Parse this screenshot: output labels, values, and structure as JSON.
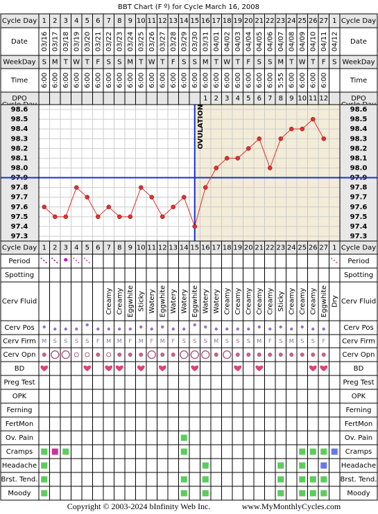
{
  "title": "BBT Chart (F º) for Cycle March 16, 2008",
  "footer": {
    "copyright": "Copyright © 2003-2024 bInfinity Web Inc.",
    "site": "www.MyMonthlyCycles.com"
  },
  "labels": {
    "cycle_day": "Cycle Day",
    "date": "Date",
    "weekday": "WeekDay",
    "time": "Time",
    "dpo": "DPO",
    "period": "Period",
    "spotting": "Spotting",
    "cerv_fluid": "Cerv Fluid",
    "cerv_pos": "Cerv Pos",
    "cerv_firm": "Cerv Firm",
    "cerv_opn": "Cerv Opn",
    "bd": "BD"
  },
  "cycle_days": [
    1,
    2,
    3,
    4,
    5,
    6,
    7,
    8,
    9,
    10,
    11,
    12,
    13,
    14,
    15,
    16,
    17,
    18,
    19,
    20,
    21,
    22,
    23,
    24,
    25,
    26,
    27,
    1
  ],
  "dates": [
    "03/16",
    "03/17",
    "03/18",
    "03/19",
    "03/20",
    "03/21",
    "03/22",
    "03/23",
    "03/24",
    "03/25",
    "03/26",
    "03/27",
    "03/28",
    "03/29",
    "03/30",
    "03/31",
    "04/01",
    "04/02",
    "04/03",
    "04/04",
    "04/05",
    "04/06",
    "04/07",
    "04/08",
    "04/09",
    "04/10",
    "04/11",
    "04/12"
  ],
  "weekdays": [
    "S",
    "M",
    "T",
    "W",
    "T",
    "F",
    "S",
    "S",
    "M",
    "T",
    "W",
    "T",
    "F",
    "S",
    "S",
    "M",
    "T",
    "W",
    "T",
    "F",
    "S",
    "S",
    "M",
    "T",
    "W",
    "T",
    "F",
    "S"
  ],
  "times": [
    "6:00",
    "6:00",
    "6:00",
    "6:00",
    "6:00",
    "6:00",
    "6:00",
    "6:00",
    "6:00",
    "6:00",
    "6:00",
    "6:00",
    "6:00",
    "6:00",
    "6:00",
    "6:00",
    "6:00",
    "6:00",
    "6:00",
    "6:00",
    "6:00",
    "6:00",
    "5:55",
    "6:00",
    "6:00",
    "6:00",
    "6:00",
    null
  ],
  "dpo": [
    null,
    null,
    null,
    null,
    null,
    null,
    null,
    null,
    null,
    null,
    null,
    null,
    null,
    null,
    null,
    1,
    2,
    3,
    4,
    5,
    6,
    7,
    8,
    9,
    10,
    11,
    12,
    null
  ],
  "chart_data": {
    "type": "line",
    "color": "#e03030",
    "values": [
      97.6,
      97.5,
      97.5,
      97.8,
      97.7,
      97.5,
      97.6,
      97.5,
      97.5,
      97.8,
      97.7,
      97.5,
      97.6,
      97.7,
      97.4,
      97.8,
      98.0,
      98.1,
      98.1,
      98.2,
      98.3,
      98.0,
      98.3,
      98.4,
      98.4,
      98.5,
      98.3,
      null
    ],
    "ylim": [
      97.25,
      98.65
    ],
    "yticks": [
      {
        "value": 98.6,
        "label": "98.6"
      },
      {
        "value": 98.5,
        "label": "98.5"
      },
      {
        "value": 98.4,
        "label": "98.4"
      },
      {
        "value": 98.3,
        "label": "98.3"
      },
      {
        "value": 98.2,
        "label": "98.2"
      },
      {
        "value": 98.1,
        "label": "98.1"
      },
      {
        "value": 98,
        "label": "98.0"
      },
      {
        "value": 97.9,
        "label": "97.9"
      },
      {
        "value": 97.8,
        "label": "97.8"
      },
      {
        "value": 97.7,
        "label": "97.7"
      },
      {
        "value": 97.6,
        "label": "97.6"
      },
      {
        "value": 97.5,
        "label": "97.5"
      },
      {
        "value": 97.4,
        "label": "97.4"
      },
      {
        "value": 97.3,
        "label": "97.3"
      }
    ],
    "coverline": 97.9,
    "ovulation_day": 15,
    "annotation": "OVULATION",
    "grid": true
  },
  "period": [
    2,
    2,
    3,
    1,
    1,
    0,
    0,
    0,
    0,
    0,
    0,
    0,
    0,
    0,
    0,
    0,
    0,
    0,
    0,
    0,
    0,
    0,
    0,
    0,
    0,
    0,
    0,
    1
  ],
  "cerv_fluid": [
    null,
    null,
    null,
    null,
    null,
    null,
    "Creamy",
    "Creamy",
    "Eggwhite",
    "Sticky",
    "Watery",
    "Eggwhite",
    "Watery",
    "Watery",
    "Eggwhite",
    "Watery",
    "Watery",
    "Creamy",
    "Creamy",
    "Creamy",
    "Creamy",
    "Creamy",
    "Sticky",
    "Creamy",
    "Creamy",
    "Creamy",
    "Eggwhite",
    "Dry"
  ],
  "cerv_pos": [
    2,
    1,
    1,
    1,
    3,
    1,
    1,
    1,
    1,
    2,
    1,
    2,
    1,
    1,
    3,
    2,
    1,
    1,
    1,
    1,
    2,
    1,
    2,
    1,
    2,
    1,
    1,
    0
  ],
  "cerv_firm": [
    "M",
    "S",
    "S",
    "S",
    "S",
    "F",
    "M",
    "M",
    "F",
    "M",
    "F",
    "M",
    "F",
    "S",
    "S",
    "S",
    "M",
    "S",
    "S",
    "S",
    "M",
    "F",
    "S",
    "M",
    "S",
    "S",
    "F",
    null
  ],
  "cerv_opn": [
    1,
    3,
    3,
    2,
    2,
    1,
    2,
    1,
    1,
    1,
    3,
    1,
    1,
    3,
    3,
    3,
    1,
    3,
    1,
    1,
    1,
    1,
    1,
    1,
    1,
    1,
    1,
    0
  ],
  "bd": [
    1,
    0,
    0,
    0,
    1,
    0,
    1,
    1,
    0,
    1,
    0,
    1,
    0,
    0,
    1,
    0,
    0,
    0,
    1,
    0,
    1,
    0,
    0,
    0,
    0,
    1,
    1,
    0
  ],
  "symptom_colors": {
    "1": "#5ccc5c",
    "2": "#cc3399",
    "3": "#6677ee"
  },
  "symptom_rows": [
    {
      "label": "Preg Test"
    },
    {
      "label": "OPK"
    },
    {
      "label": "Ferning"
    },
    {
      "label": "FertMon"
    },
    {
      "label": "Ov. Pain",
      "values": [
        0,
        0,
        0,
        0,
        0,
        0,
        0,
        0,
        0,
        0,
        0,
        0,
        0,
        1,
        0,
        0,
        0,
        0,
        0,
        0,
        0,
        0,
        0,
        0,
        0,
        0,
        0,
        0
      ]
    },
    {
      "label": "Cramps",
      "values": [
        1,
        2,
        1,
        0,
        0,
        0,
        0,
        0,
        0,
        0,
        0,
        0,
        0,
        1,
        0,
        0,
        0,
        0,
        0,
        0,
        0,
        0,
        0,
        0,
        1,
        1,
        1,
        3
      ]
    },
    {
      "label": "Headache",
      "values": [
        1,
        0,
        0,
        0,
        0,
        0,
        0,
        0,
        0,
        0,
        0,
        0,
        0,
        0,
        0,
        1,
        0,
        0,
        0,
        0,
        0,
        0,
        1,
        0,
        1,
        0,
        3,
        0
      ]
    },
    {
      "label": "Brst. Tend.",
      "values": [
        1,
        0,
        0,
        0,
        0,
        0,
        0,
        0,
        0,
        0,
        0,
        0,
        0,
        1,
        0,
        1,
        0,
        0,
        0,
        0,
        0,
        0,
        1,
        0,
        1,
        1,
        1,
        0
      ]
    },
    {
      "label": "Moody",
      "values": [
        1,
        0,
        0,
        0,
        0,
        0,
        0,
        0,
        0,
        0,
        0,
        0,
        0,
        1,
        0,
        1,
        0,
        0,
        0,
        0,
        0,
        0,
        1,
        0,
        1,
        1,
        1,
        0
      ]
    }
  ]
}
